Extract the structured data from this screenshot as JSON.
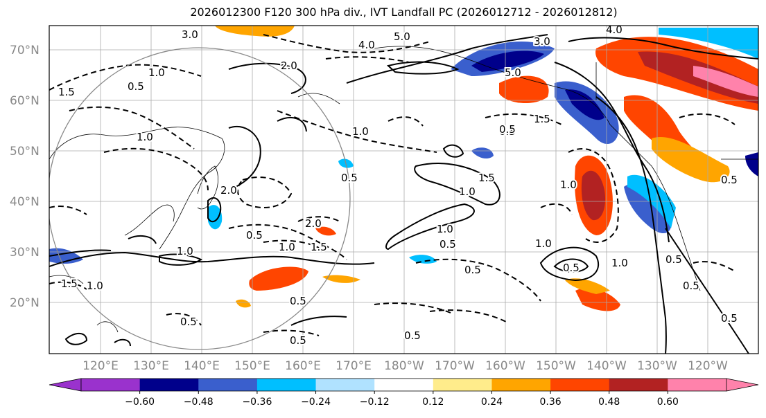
{
  "title": "2026012300 F120 300 hPa div., IVT Landfall PC (2026012712 - 2026012812)",
  "latitude_labels": [
    "70°N",
    "60°N",
    "50°N",
    "40°N",
    "30°N",
    "20°N"
  ],
  "longitude_labels": [
    "120°E",
    "130°E",
    "140°E",
    "150°E",
    "160°E",
    "170°E",
    "180°W",
    "170°W",
    "160°W",
    "150°W",
    "140°W",
    "130°W",
    "120°W"
  ],
  "colorbar": {
    "ticks": [
      "−0.60",
      "−0.48",
      "−0.36",
      "−0.24",
      "−0.12",
      "0.12",
      "0.24",
      "0.36",
      "0.48",
      "0.60"
    ],
    "colors": [
      "#9a32cd",
      "#00008b",
      "#3a5fcd",
      "#00bfff",
      "#b0e2ff",
      "#ffffff",
      "#ffec8b",
      "#ffa500",
      "#ff4500",
      "#b22222",
      "#ff82ab"
    ]
  },
  "contour_labels": [
    "3.0",
    "5.0",
    "4.0",
    "2.0",
    "1.0",
    "1.5",
    "0.5",
    "1.0",
    "0.5",
    "1.0",
    "1.5",
    "0.5",
    "1.0",
    "0.5",
    "2.0",
    "1.5",
    "0.5",
    "1.0",
    "0.5",
    "1.0",
    "0.5",
    "1.5",
    "5.0",
    "3.0",
    "4.0",
    "0.5",
    "1.0",
    "0.5",
    "0.5",
    "0.5",
    "2.0",
    "1.5",
    "1.0",
    "0.5",
    "1.0",
    "0.5",
    "0.5",
    "1.0",
    "0.5",
    "1.0",
    "0.5"
  ],
  "map_colors": {
    "grid": "#aaaaaa",
    "circle": "#888888",
    "contour": "#000000"
  },
  "icons": [
    "colorbar-arrow-left",
    "colorbar-arrow-right"
  ]
}
